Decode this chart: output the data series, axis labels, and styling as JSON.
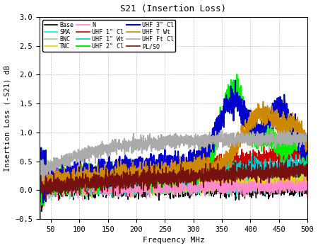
{
  "title": "S21 (Insertion Loss)",
  "xlabel": "Frequency MHz",
  "ylabel": "Insertion Loss (-S21) dB",
  "xlim": [
    30,
    500
  ],
  "ylim": [
    -0.5,
    3.0
  ],
  "xticks": [
    50,
    100,
    150,
    200,
    250,
    300,
    350,
    400,
    450,
    500
  ],
  "yticks": [
    -0.5,
    0.0,
    0.5,
    1.0,
    1.5,
    2.0,
    2.5,
    3.0
  ],
  "series": [
    {
      "label": "Base",
      "color": "#000000",
      "lw": 1.0,
      "seed": 1
    },
    {
      "label": "SMA",
      "color": "#00EEEE",
      "lw": 1.0,
      "seed": 2
    },
    {
      "label": "BNC",
      "color": "#88DD88",
      "lw": 1.0,
      "seed": 3
    },
    {
      "label": "TNC",
      "color": "#DDDD00",
      "lw": 1.0,
      "seed": 4
    },
    {
      "label": "N",
      "color": "#FF88CC",
      "lw": 1.0,
      "seed": 5
    },
    {
      "label": "UHF 1\" Cl",
      "color": "#CC0000",
      "lw": 1.2,
      "seed": 6
    },
    {
      "label": "UHF 1\" Wt",
      "color": "#00CCCC",
      "lw": 1.0,
      "seed": 7
    },
    {
      "label": "UHF 2\" Cl",
      "color": "#00EE00",
      "lw": 1.5,
      "seed": 8
    },
    {
      "label": "UHF 3\" Cl",
      "color": "#0000CC",
      "lw": 1.5,
      "seed": 9
    },
    {
      "label": "UHF T Wt",
      "color": "#CC8800",
      "lw": 1.2,
      "seed": 10
    },
    {
      "label": "UHF Ft Cl",
      "color": "#AAAAAA",
      "lw": 1.2,
      "seed": 11
    },
    {
      "label": "PL/SO",
      "color": "#771111",
      "lw": 1.2,
      "seed": 12
    }
  ]
}
